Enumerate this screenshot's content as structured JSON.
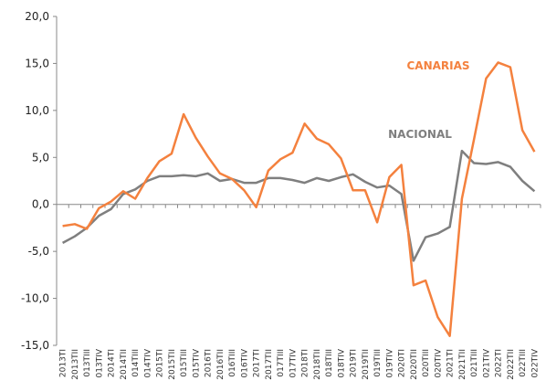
{
  "chart_data": {
    "type": "line",
    "categories": [
      "2013TI",
      "2013TII",
      "013TIII",
      "013TIV",
      "2014TI",
      "2014TII",
      "014TIII",
      "014TIV",
      "2015TI",
      "2015TII",
      "015TIII",
      "015TIV",
      "2016TI",
      "2016TII",
      "016TIII",
      "016TIV",
      "2017TI",
      "2017TII",
      "017TIII",
      "017TIV",
      "2018TI",
      "2018TII",
      "018TIII",
      "018TIV",
      "2019TI",
      "2019TII",
      "019TIII",
      "019TIV",
      "2020TI",
      "2020TII",
      "020TIII",
      "020TIV",
      "2021TI",
      "2021TII",
      "021TIII",
      "021TIV",
      "2022TI",
      "2022TII",
      "022TIII",
      "022TIV"
    ],
    "series": [
      {
        "name": "CANARIAS",
        "color": "#f4813e",
        "values": [
          -2.3,
          -2.1,
          -2.6,
          -0.4,
          0.3,
          1.4,
          0.6,
          2.8,
          4.6,
          5.4,
          9.6,
          7.1,
          5.1,
          3.3,
          2.7,
          1.5,
          -0.3,
          3.6,
          4.8,
          5.5,
          8.6,
          7.0,
          6.4,
          4.9,
          1.5,
          1.5,
          -1.9,
          2.9,
          4.2,
          -8.6,
          -8.1,
          -12.0,
          -14.0,
          0.6,
          6.9,
          13.4,
          15.1,
          14.6,
          7.9,
          5.6
        ]
      },
      {
        "name": "NACIONAL",
        "color": "#7f7f7f",
        "values": [
          -4.1,
          -3.4,
          -2.5,
          -1.2,
          -0.5,
          1.1,
          1.6,
          2.5,
          3.0,
          3.0,
          3.1,
          3.0,
          3.3,
          2.5,
          2.7,
          2.3,
          2.3,
          2.8,
          2.8,
          2.6,
          2.3,
          2.8,
          2.5,
          2.9,
          3.2,
          2.4,
          1.8,
          2.0,
          1.1,
          -6.0,
          -3.5,
          -3.1,
          -2.4,
          5.7,
          4.4,
          4.3,
          4.5,
          4.0,
          2.5,
          1.4
        ]
      }
    ],
    "ylim": [
      -15,
      20
    ],
    "yticks": [
      {
        "value": -15,
        "label": "-15,0"
      },
      {
        "value": -10,
        "label": "-10,0"
      },
      {
        "value": -5,
        "label": "-5,0"
      },
      {
        "value": 0,
        "label": "0,0"
      },
      {
        "value": 5,
        "label": "5,0"
      },
      {
        "value": 10,
        "label": "10,0"
      },
      {
        "value": 15,
        "label": "15,0"
      },
      {
        "value": 20,
        "label": "20,0"
      }
    ],
    "grid": false
  }
}
